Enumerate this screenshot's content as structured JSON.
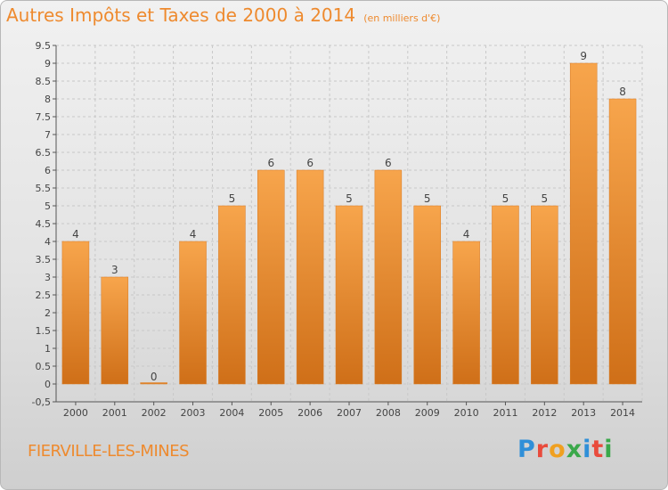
{
  "header": {
    "title": "Autres Impôts et Taxes de 2000 à 2014",
    "unit": "(en milliers d'€)"
  },
  "footer": {
    "commune": "FIERVILLE-LES-MINES",
    "brand": "Proxiti",
    "brand_colors": [
      "#2f8fd8",
      "#e94b3c",
      "#f0a020",
      "#3aa84a",
      "#2f8fd8",
      "#e94b3c",
      "#3aa84a"
    ]
  },
  "colors": {
    "accent": "#ee8a2e",
    "bar_top": "#f7a54c",
    "bar_bottom": "#cf6f18",
    "grid": "#c8c8c8"
  },
  "chart_data": {
    "type": "bar",
    "title": "Autres Impôts et Taxes de 2000 à 2014",
    "subtitle": "(en milliers d'€)",
    "xlabel": "",
    "ylabel": "",
    "categories": [
      "2000",
      "2001",
      "2002",
      "2003",
      "2004",
      "2005",
      "2006",
      "2007",
      "2008",
      "2009",
      "2010",
      "2011",
      "2012",
      "2013",
      "2014"
    ],
    "values": [
      4,
      3,
      0,
      4,
      5,
      6,
      6,
      5,
      6,
      5,
      4,
      5,
      5,
      9,
      8
    ],
    "data_labels": [
      "4",
      "3",
      "0",
      "4",
      "5",
      "6",
      "6",
      "5",
      "6",
      "5",
      "4",
      "5",
      "5",
      "9",
      "8"
    ],
    "ylim": [
      -0.5,
      9.5
    ],
    "yticks": [
      "-0,5",
      "0",
      "0.5",
      "1",
      "1.5",
      "2",
      "2.5",
      "3",
      "3.5",
      "4",
      "4.5",
      "5",
      "5.5",
      "6",
      "6.5",
      "7",
      "7.5",
      "8",
      "8.5",
      "9",
      "9.5"
    ],
    "ytick_values": [
      -0.5,
      0,
      0.5,
      1,
      1.5,
      2,
      2.5,
      3,
      3.5,
      4,
      4.5,
      5,
      5.5,
      6,
      6.5,
      7,
      7.5,
      8,
      8.5,
      9,
      9.5
    ],
    "grid": true,
    "legend": "none"
  }
}
